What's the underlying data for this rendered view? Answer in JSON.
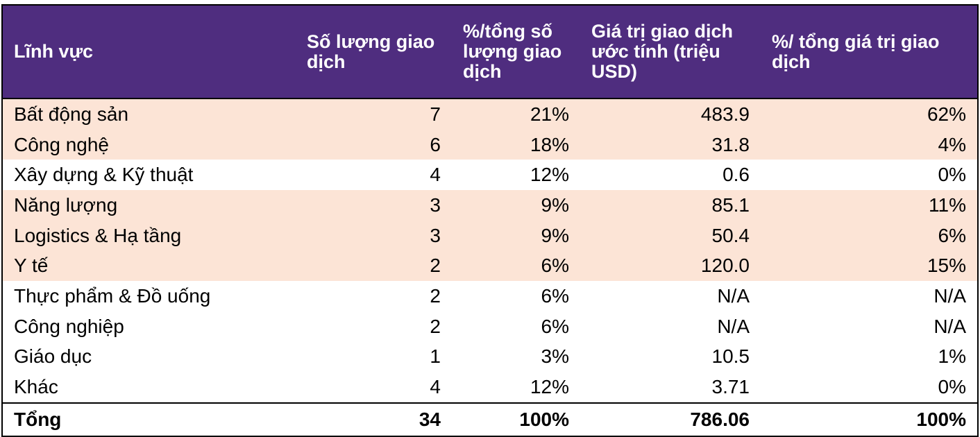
{
  "colors": {
    "header_bg": "#4F2D7F",
    "highlight_bg": "#FCE4D6"
  },
  "headers": [
    "Lĩnh vực",
    "Số lượng giao dịch",
    "%/tổng số lượng giao dịch",
    "Giá trị giao dịch ước tính (triệu USD)",
    "%/ tổng giá trị giao dịch"
  ],
  "rows": [
    {
      "cells": [
        "Bất động sản",
        "7",
        "21%",
        "483.9",
        "62%"
      ],
      "highlight": true
    },
    {
      "cells": [
        "Công nghệ",
        "6",
        "18%",
        "31.8",
        "4%"
      ],
      "highlight": true
    },
    {
      "cells": [
        "Xây dựng & Kỹ thuật",
        "4",
        "12%",
        "0.6",
        "0%"
      ],
      "highlight": false
    },
    {
      "cells": [
        "Năng lượng",
        "3",
        "9%",
        "85.1",
        "11%"
      ],
      "highlight": true
    },
    {
      "cells": [
        "Logistics & Hạ tầng",
        "3",
        "9%",
        "50.4",
        "6%"
      ],
      "highlight": true
    },
    {
      "cells": [
        "Y tế",
        "2",
        "6%",
        "120.0",
        "15%"
      ],
      "highlight": true
    },
    {
      "cells": [
        "Thực phẩm & Đồ uống",
        "2",
        "6%",
        "N/A",
        "N/A"
      ],
      "highlight": false
    },
    {
      "cells": [
        "Công nghiệp",
        "2",
        "6%",
        "N/A",
        "N/A"
      ],
      "highlight": false
    },
    {
      "cells": [
        "Giáo dục",
        "1",
        "3%",
        "10.5",
        "1%"
      ],
      "highlight": false
    },
    {
      "cells": [
        "Khác",
        "4",
        "12%",
        "3.71",
        "0%"
      ],
      "highlight": false
    }
  ],
  "total": [
    "Tổng",
    "34",
    "100%",
    "786.06",
    "100%"
  ]
}
